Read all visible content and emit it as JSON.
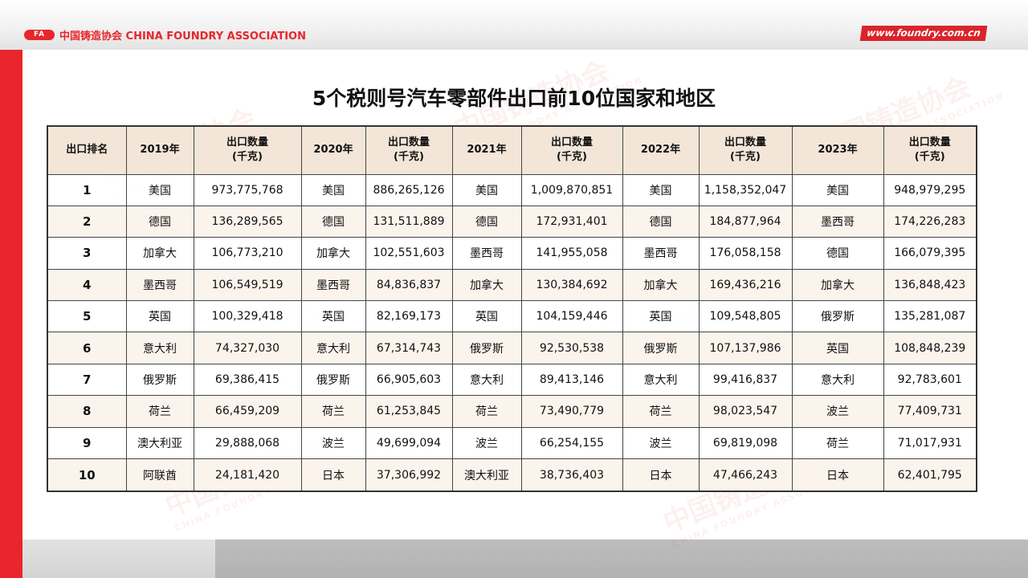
{
  "header": {
    "logo_mark": "FA",
    "logo_text": "中国铸造协会 CHINA FOUNDRY ASSOCIATION",
    "url": "www.foundry.com.cn"
  },
  "watermark": {
    "cn": "中国铸造协会",
    "en": "CHINA FOUNDRY ASSOCIATION"
  },
  "title": "5个税则号汽车零部件出口前10位国家和地区",
  "table": {
    "headers": {
      "rank": "出口排名",
      "y2019": "2019年",
      "y2020": "2020年",
      "y2021": "2021年",
      "y2022": "2022年",
      "y2023": "2023年",
      "qty_line1": "出口数量",
      "qty_line2": "(千克)"
    },
    "rows": [
      {
        "rank": "1",
        "c2019": "美国",
        "q2019": "973,775,768",
        "c2020": "美国",
        "q2020": "886,265,126",
        "c2021": "美国",
        "q2021": "1,009,870,851",
        "c2022": "美国",
        "q2022": "1,158,352,047",
        "c2023": "美国",
        "q2023": "948,979,295"
      },
      {
        "rank": "2",
        "c2019": "德国",
        "q2019": "136,289,565",
        "c2020": "德国",
        "q2020": "131,511,889",
        "c2021": "德国",
        "q2021": "172,931,401",
        "c2022": "德国",
        "q2022": "184,877,964",
        "c2023": "墨西哥",
        "q2023": "174,226,283"
      },
      {
        "rank": "3",
        "c2019": "加拿大",
        "q2019": "106,773,210",
        "c2020": "加拿大",
        "q2020": "102,551,603",
        "c2021": "墨西哥",
        "q2021": "141,955,058",
        "c2022": "墨西哥",
        "q2022": "176,058,158",
        "c2023": "德国",
        "q2023": "166,079,395"
      },
      {
        "rank": "4",
        "c2019": "墨西哥",
        "q2019": "106,549,519",
        "c2020": "墨西哥",
        "q2020": "84,836,837",
        "c2021": "加拿大",
        "q2021": "130,384,692",
        "c2022": "加拿大",
        "q2022": "169,436,216",
        "c2023": "加拿大",
        "q2023": "136,848,423"
      },
      {
        "rank": "5",
        "c2019": "英国",
        "q2019": "100,329,418",
        "c2020": "英国",
        "q2020": "82,169,173",
        "c2021": "英国",
        "q2021": "104,159,446",
        "c2022": "英国",
        "q2022": "109,548,805",
        "c2023": "俄罗斯",
        "q2023": "135,281,087"
      },
      {
        "rank": "6",
        "c2019": "意大利",
        "q2019": "74,327,030",
        "c2020": "意大利",
        "q2020": "67,314,743",
        "c2021": "俄罗斯",
        "q2021": "92,530,538",
        "c2022": "俄罗斯",
        "q2022": "107,137,986",
        "c2023": "英国",
        "q2023": "108,848,239"
      },
      {
        "rank": "7",
        "c2019": "俄罗斯",
        "q2019": "69,386,415",
        "c2020": "俄罗斯",
        "q2020": "66,905,603",
        "c2021": "意大利",
        "q2021": "89,413,146",
        "c2022": "意大利",
        "q2022": "99,416,837",
        "c2023": "意大利",
        "q2023": "92,783,601"
      },
      {
        "rank": "8",
        "c2019": "荷兰",
        "q2019": "66,459,209",
        "c2020": "荷兰",
        "q2020": "61,253,845",
        "c2021": "荷兰",
        "q2021": "73,490,779",
        "c2022": "荷兰",
        "q2022": "98,023,547",
        "c2023": "波兰",
        "q2023": "77,409,731"
      },
      {
        "rank": "9",
        "c2019": "澳大利亚",
        "q2019": "29,888,068",
        "c2020": "波兰",
        "q2020": "49,699,094",
        "c2021": "波兰",
        "q2021": "66,254,155",
        "c2022": "波兰",
        "q2022": "69,819,098",
        "c2023": "荷兰",
        "q2023": "71,017,931"
      },
      {
        "rank": "10",
        "c2019": "阿联酋",
        "q2019": "24,181,420",
        "c2020": "日本",
        "q2020": "37,306,992",
        "c2021": "澳大利亚",
        "q2021": "38,736,403",
        "c2022": "日本",
        "q2022": "47,466,243",
        "c2023": "日本",
        "q2023": "62,401,795"
      }
    ]
  },
  "colors": {
    "accent_red": "#e8262b",
    "header_fill": "#f3e6d8"
  }
}
